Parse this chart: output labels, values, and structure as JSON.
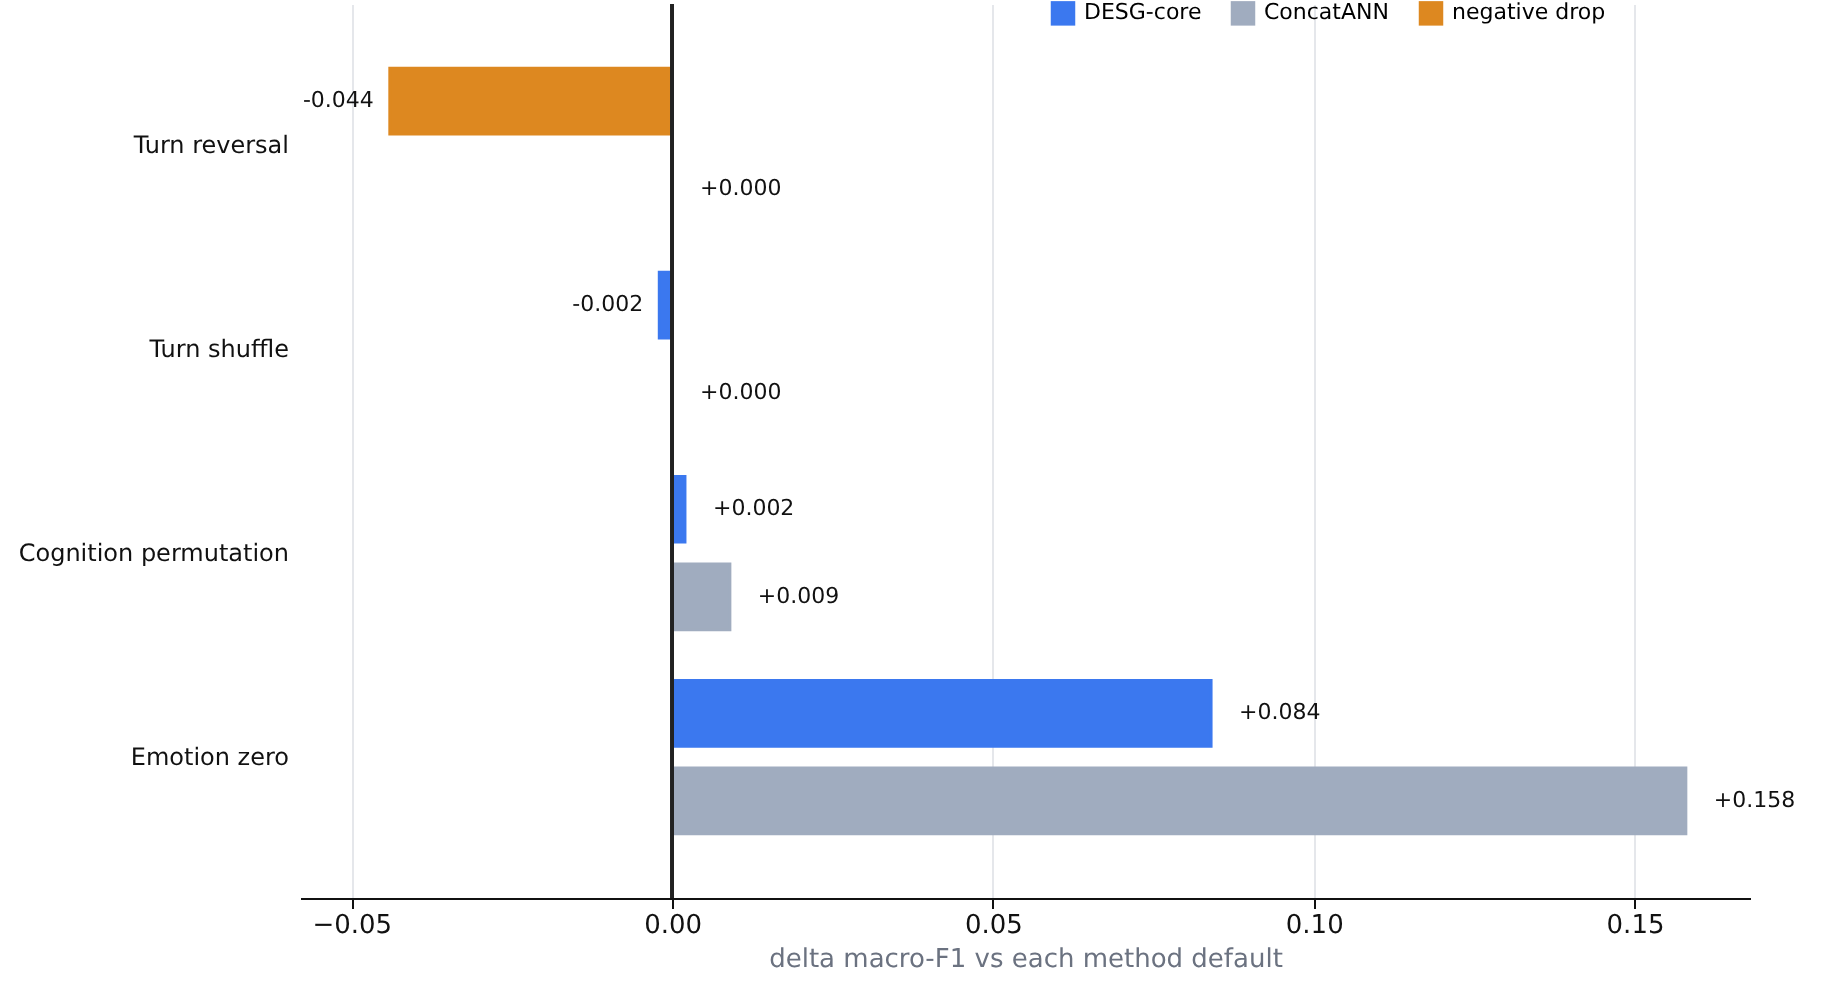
{
  "chart_data": {
    "type": "bar",
    "orientation": "horizontal",
    "xlabel": "delta macro-F1 vs each method default",
    "categories": [
      "Turn reversal",
      "Turn shuffle",
      "Cognition permutation",
      "Emotion zero"
    ],
    "series": [
      {
        "name": "DESG-core",
        "color": "#3b78ef",
        "values": [
          null,
          -0.002,
          0.002,
          0.084
        ],
        "value_labels": [
          null,
          "-0.002",
          "+0.002",
          "+0.084"
        ]
      },
      {
        "name": "ConcatANN",
        "color": "#a0acbf",
        "values": [
          0.0,
          0.0,
          0.009,
          0.158
        ],
        "value_labels": [
          "+0.000",
          "+0.000",
          "+0.009",
          "+0.158"
        ]
      },
      {
        "name": "negative drop",
        "color": "#dd8820",
        "values": [
          -0.044,
          null,
          null,
          null
        ],
        "value_labels": [
          "-0.044",
          null,
          null,
          null
        ]
      }
    ],
    "xlim": [
      -0.058,
      0.168
    ],
    "xticks": [
      {
        "value": -0.05,
        "label": "−0.05"
      },
      {
        "value": 0,
        "label": "0.00"
      },
      {
        "value": 0.05,
        "label": "0.05"
      },
      {
        "value": 0.1,
        "label": "0.10"
      },
      {
        "value": 0.15,
        "label": "0.15"
      }
    ],
    "ref_lines": [
      {
        "axis": "x",
        "value": 0,
        "color": "#222222"
      }
    ],
    "grid": "x",
    "legend": "top right"
  }
}
